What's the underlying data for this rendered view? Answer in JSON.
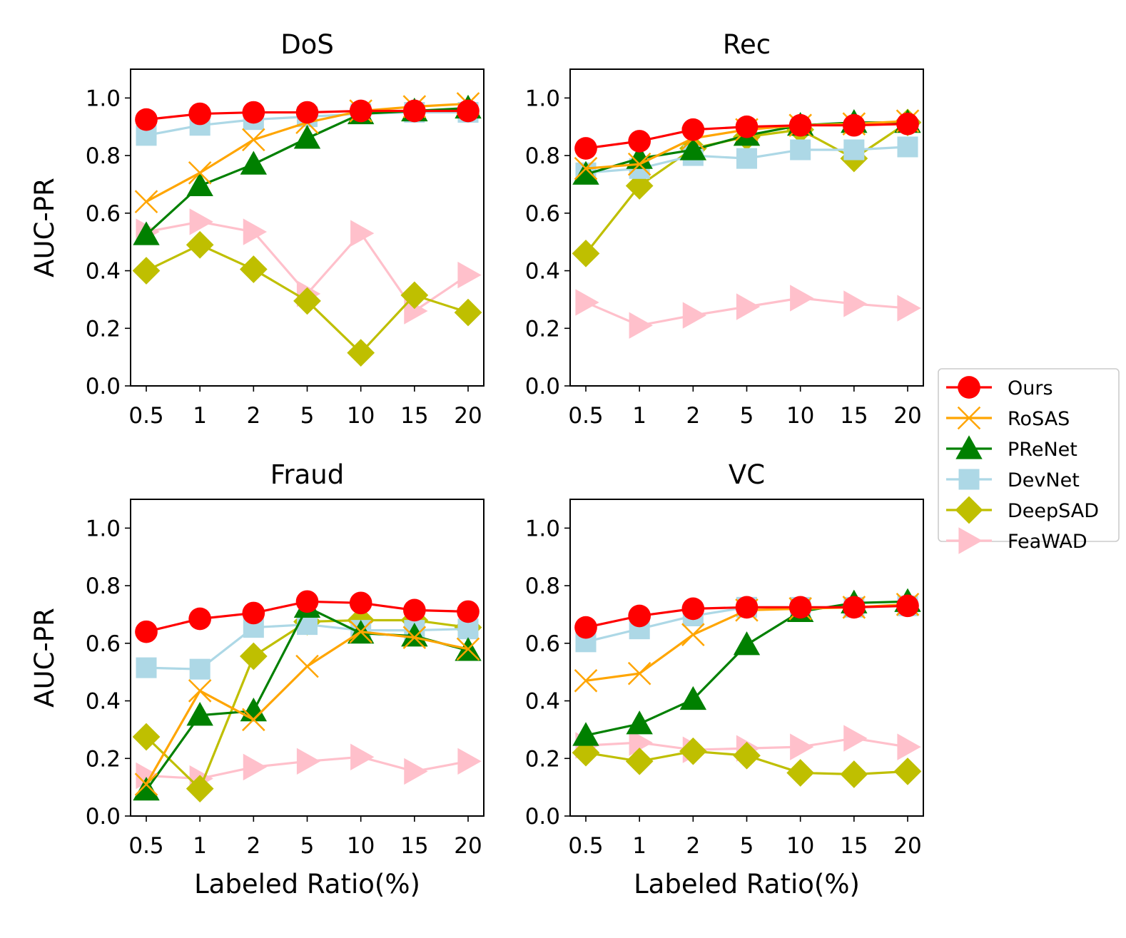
{
  "figure": {
    "y_axis_label": "AUC-PR",
    "x_axis_label": "Labeled Ratio(%)"
  },
  "colors": {
    "Ours": "#ff0000",
    "RoSAS": "#ffa500",
    "PReNet": "#008000",
    "DevNet": "#add8e6",
    "DeepSAD": "#bfbf00",
    "FeaWAD": "#ffc0cb"
  },
  "legend": {
    "placement": "outside-right",
    "entries": [
      {
        "name": " Ours",
        "marker": "circle"
      },
      {
        "name": "RoSAS",
        "marker": "x"
      },
      {
        "name": "PReNet",
        "marker": "triangle-up"
      },
      {
        "name": "DevNet",
        "marker": "square"
      },
      {
        "name": "DeepSAD",
        "marker": "diamond"
      },
      {
        "name": "FeaWAD",
        "marker": "triangle-right"
      }
    ]
  },
  "chart_data": [
    {
      "type": "line",
      "title": "DoS",
      "xlabel": "",
      "ylabel": "AUC-PR",
      "categories": [
        "0.5",
        "1",
        "2",
        "5",
        "10",
        "15",
        "20"
      ],
      "ylim": [
        0,
        1.1
      ],
      "yticks": [
        "0.0",
        "0.2",
        "0.4",
        "0.6",
        "0.8",
        "1.0"
      ],
      "series": [
        {
          "name": "FeaWAD",
          "marker": "triangle-right",
          "values": [
            0.535,
            0.57,
            0.535,
            0.32,
            0.53,
            0.26,
            0.385
          ]
        },
        {
          "name": "DeepSAD",
          "marker": "diamond",
          "values": [
            0.4,
            0.49,
            0.405,
            0.295,
            0.115,
            0.315,
            0.255
          ]
        },
        {
          "name": "DevNet",
          "marker": "square",
          "values": [
            0.87,
            0.905,
            0.925,
            0.935,
            0.945,
            0.95,
            0.95
          ]
        },
        {
          "name": "PReNet",
          "marker": "triangle-up",
          "values": [
            0.525,
            0.695,
            0.77,
            0.86,
            0.945,
            0.955,
            0.965
          ]
        },
        {
          "name": "RoSAS",
          "marker": "x",
          "values": [
            0.64,
            0.74,
            0.855,
            0.915,
            0.955,
            0.97,
            0.98
          ]
        },
        {
          "name": "Ours",
          "marker": "circle",
          "values": [
            0.925,
            0.945,
            0.95,
            0.95,
            0.955,
            0.955,
            0.955
          ]
        }
      ]
    },
    {
      "type": "line",
      "title": "Rec",
      "xlabel": "",
      "ylabel": "",
      "categories": [
        "0.5",
        "1",
        "2",
        "5",
        "10",
        "15",
        "20"
      ],
      "ylim": [
        0,
        1.1
      ],
      "yticks": [
        "0.0",
        "0.2",
        "0.4",
        "0.6",
        "0.8",
        "1.0"
      ],
      "series": [
        {
          "name": "FeaWAD",
          "marker": "triangle-right",
          "values": [
            0.29,
            0.21,
            0.245,
            0.275,
            0.305,
            0.285,
            0.27
          ]
        },
        {
          "name": "DeepSAD",
          "marker": "diamond",
          "values": [
            0.46,
            0.695,
            0.825,
            0.865,
            0.89,
            0.79,
            0.915
          ]
        },
        {
          "name": "DevNet",
          "marker": "square",
          "values": [
            0.74,
            0.755,
            0.8,
            0.79,
            0.82,
            0.82,
            0.83
          ]
        },
        {
          "name": "PReNet",
          "marker": "triangle-up",
          "values": [
            0.735,
            0.79,
            0.82,
            0.87,
            0.905,
            0.915,
            0.915
          ]
        },
        {
          "name": "RoSAS",
          "marker": "x",
          "values": [
            0.755,
            0.77,
            0.86,
            0.89,
            0.905,
            0.91,
            0.92
          ]
        },
        {
          "name": "Ours",
          "marker": "circle",
          "values": [
            0.825,
            0.85,
            0.89,
            0.9,
            0.905,
            0.905,
            0.91
          ]
        }
      ]
    },
    {
      "type": "line",
      "title": "Fraud",
      "xlabel": "Labeled Ratio(%)",
      "ylabel": "AUC-PR",
      "categories": [
        "0.5",
        "1",
        "2",
        "5",
        "10",
        "15",
        "20"
      ],
      "ylim": [
        0,
        1.1
      ],
      "yticks": [
        "0.0",
        "0.2",
        "0.4",
        "0.6",
        "0.8",
        "1.0"
      ],
      "series": [
        {
          "name": "FeaWAD",
          "marker": "triangle-right",
          "values": [
            0.14,
            0.13,
            0.17,
            0.19,
            0.205,
            0.155,
            0.19
          ]
        },
        {
          "name": "DeepSAD",
          "marker": "diamond",
          "values": [
            0.275,
            0.095,
            0.555,
            0.675,
            0.68,
            0.68,
            0.655
          ]
        },
        {
          "name": "DevNet",
          "marker": "square",
          "values": [
            0.515,
            0.51,
            0.655,
            0.665,
            0.645,
            0.645,
            0.65
          ]
        },
        {
          "name": "PReNet",
          "marker": "triangle-up",
          "values": [
            0.09,
            0.35,
            0.365,
            0.725,
            0.635,
            0.625,
            0.575
          ]
        },
        {
          "name": "RoSAS",
          "marker": "x",
          "values": [
            0.11,
            0.435,
            0.335,
            0.52,
            0.64,
            0.62,
            0.58
          ]
        },
        {
          "name": "Ours",
          "marker": "circle",
          "values": [
            0.64,
            0.685,
            0.705,
            0.745,
            0.74,
            0.715,
            0.71
          ]
        }
      ]
    },
    {
      "type": "line",
      "title": "VC",
      "xlabel": "Labeled Ratio(%)",
      "ylabel": "",
      "categories": [
        "0.5",
        "1",
        "2",
        "5",
        "10",
        "15",
        "20"
      ],
      "ylim": [
        0,
        1.1
      ],
      "yticks": [
        "0.0",
        "0.2",
        "0.4",
        "0.6",
        "0.8",
        "1.0"
      ],
      "series": [
        {
          "name": "FeaWAD",
          "marker": "triangle-right",
          "values": [
            0.245,
            0.255,
            0.23,
            0.235,
            0.24,
            0.27,
            0.24
          ]
        },
        {
          "name": "DeepSAD",
          "marker": "diamond",
          "values": [
            0.22,
            0.19,
            0.225,
            0.21,
            0.15,
            0.145,
            0.155
          ]
        },
        {
          "name": "DevNet",
          "marker": "square",
          "values": [
            0.605,
            0.65,
            0.695,
            0.725,
            0.725,
            0.725,
            0.73
          ]
        },
        {
          "name": "PReNet",
          "marker": "triangle-up",
          "values": [
            0.28,
            0.32,
            0.405,
            0.595,
            0.71,
            0.74,
            0.745
          ]
        },
        {
          "name": "RoSAS",
          "marker": "x",
          "values": [
            0.47,
            0.495,
            0.63,
            0.715,
            0.72,
            0.725,
            0.735
          ]
        },
        {
          "name": "Ours",
          "marker": "circle",
          "values": [
            0.655,
            0.695,
            0.72,
            0.725,
            0.725,
            0.725,
            0.73
          ]
        }
      ]
    }
  ]
}
